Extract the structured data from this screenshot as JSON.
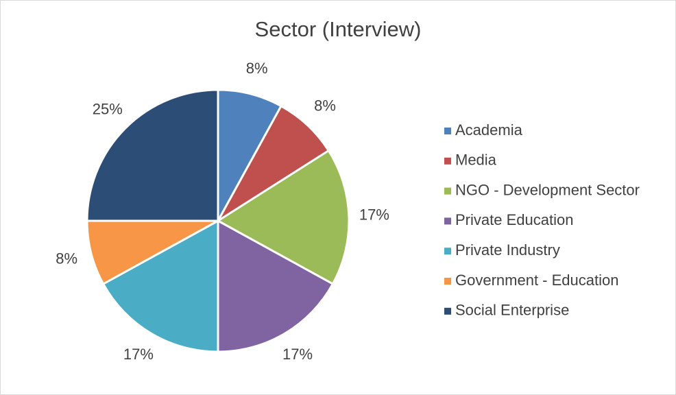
{
  "chart_data": {
    "type": "pie",
    "title": "Sector (Interview)",
    "categories": [
      "Academia",
      "Media",
      "NGO - Development Sector",
      "Private Education",
      "Private Industry",
      "Government - Education",
      "Social Enterprise"
    ],
    "values": [
      8,
      8,
      17,
      17,
      17,
      8,
      25
    ],
    "value_labels": [
      "8%",
      "8%",
      "17%",
      "17%",
      "17%",
      "8%",
      "25%"
    ],
    "colors": [
      "#4f81bd",
      "#c0504d",
      "#9bbb59",
      "#8064a2",
      "#4bacc6",
      "#f79646",
      "#2c4d75"
    ],
    "legend": "right"
  }
}
